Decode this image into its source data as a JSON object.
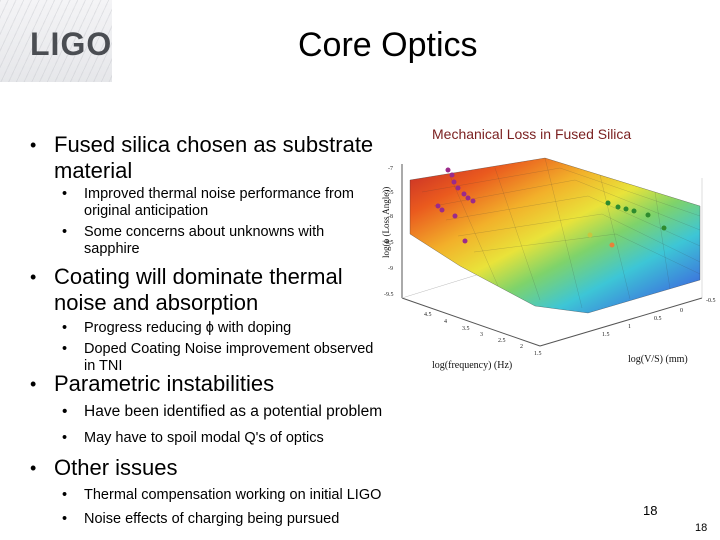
{
  "logo": {
    "text": "LIGO"
  },
  "title": "Core Optics",
  "bullets": [
    {
      "text": "Fused silica chosen as substrate material"
    },
    {
      "text": "Coating will dominate thermal noise and absorption"
    },
    {
      "text": "Parametric instabilities"
    },
    {
      "text": "Other issues"
    }
  ],
  "subbullets": [
    {
      "text": "Improved thermal noise performance from original anticipation"
    },
    {
      "text": "Some concerns about unknowns with sapphire"
    },
    {
      "text": "Progress reducing ϕ with doping"
    },
    {
      "text": "Doped Coating Noise improvement observed in TNI"
    },
    {
      "text": "Have been identified as a potential problem"
    },
    {
      "text": "May have to spoil modal Q's of optics"
    },
    {
      "text": "Thermal compensation working on initial LIGO"
    },
    {
      "text": "Noise effects of charging being pursued"
    }
  ],
  "figure": {
    "title": "Mechanical Loss in Fused Silica",
    "z_label": "log(ϕ (Loss Angle))",
    "x_label": "log(frequency) (Hz)",
    "y_label": "log(V/S) (mm)",
    "z_ticks": [
      "-7",
      "-7.5",
      "-8",
      "-8.5",
      "-9",
      "-9.5"
    ],
    "x_ticks": [
      "4.5",
      "4",
      "3.5",
      "3",
      "2.5",
      "2",
      "1.5"
    ],
    "y_ticks": [
      "-0.5",
      "0",
      "0.5",
      "1",
      "1.5"
    ]
  },
  "page_numbers": {
    "primary": "18",
    "secondary": "18"
  }
}
